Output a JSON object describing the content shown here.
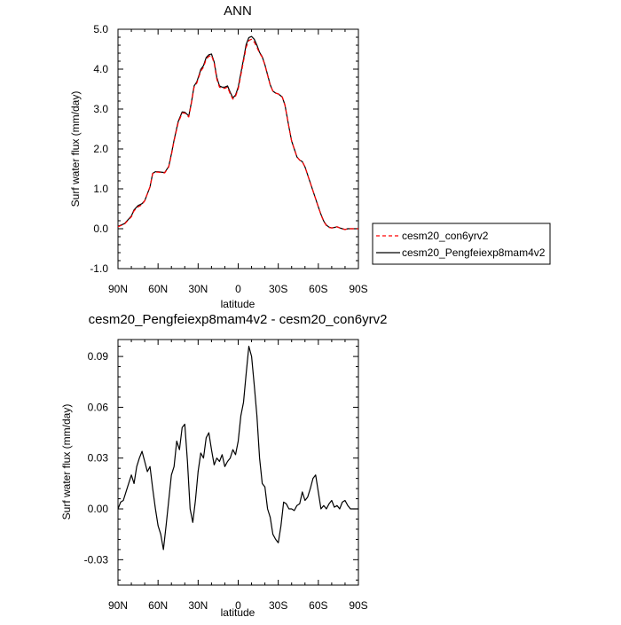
{
  "colors": {
    "axis": "#000000",
    "control_series": "#ff0000",
    "exp_series": "#000000",
    "background": "#ffffff"
  },
  "chart_data": [
    {
      "type": "line",
      "title": "ANN",
      "xlabel": "latitude",
      "ylabel": "Surf water flux (mm/day)",
      "x_direction": "north-to-south",
      "xlim": [
        90,
        -90
      ],
      "xticks": [
        90,
        60,
        30,
        0,
        -30,
        -60,
        -90
      ],
      "xtick_labels": [
        "90N",
        "60N",
        "30N",
        "0",
        "30S",
        "60S",
        "90S"
      ],
      "ylim": [
        -1.0,
        5.0
      ],
      "yticks": [
        -1.0,
        0.0,
        1.0,
        2.0,
        3.0,
        4.0,
        5.0
      ],
      "ytick_labels": [
        "-1.0",
        "0.0",
        "1.0",
        "2.0",
        "3.0",
        "4.0",
        "5.0"
      ],
      "legend_placement": "right",
      "grid": false,
      "series": [
        {
          "name": "cesm20_con6yrv2",
          "style": "dashed",
          "color": "#ff0000",
          "x": [
            90,
            85,
            80,
            78,
            75,
            72,
            70,
            66,
            64,
            62,
            60,
            58,
            55,
            52,
            50,
            48,
            45,
            42,
            40,
            37,
            35,
            33,
            31,
            29,
            28,
            26,
            24,
            22,
            20,
            18,
            16,
            14,
            12,
            10,
            8,
            6,
            4,
            2,
            0,
            -2,
            -4,
            -6,
            -8,
            -10,
            -12,
            -14,
            -16,
            -18,
            -20,
            -22,
            -24,
            -26,
            -28,
            -30,
            -33,
            -35,
            -38,
            -40,
            -42,
            -44,
            -46,
            -48,
            -50,
            -52,
            -54,
            -56,
            -58,
            -60,
            -62,
            -64,
            -66,
            -68,
            -70,
            -72,
            -74,
            -76,
            -78,
            -80,
            -82,
            -85,
            -88,
            -90
          ],
          "y": [
            0.05,
            0.12,
            0.3,
            0.45,
            0.55,
            0.6,
            0.7,
            1.05,
            1.38,
            1.42,
            1.42,
            1.41,
            1.4,
            1.55,
            1.85,
            2.2,
            2.65,
            2.9,
            2.9,
            2.8,
            3.15,
            3.55,
            3.65,
            3.85,
            3.95,
            4.05,
            4.25,
            4.32,
            4.35,
            4.15,
            3.75,
            3.55,
            3.52,
            3.52,
            3.55,
            3.38,
            3.25,
            3.32,
            3.5,
            3.85,
            4.2,
            4.55,
            4.72,
            4.75,
            4.68,
            4.55,
            4.4,
            4.3,
            4.1,
            3.85,
            3.6,
            3.45,
            3.4,
            3.38,
            3.3,
            3.1,
            2.55,
            2.2,
            2.0,
            1.8,
            1.72,
            1.68,
            1.55,
            1.35,
            1.15,
            0.95,
            0.75,
            0.55,
            0.35,
            0.18,
            0.08,
            0.03,
            0.02,
            0.03,
            0.05,
            0.02,
            0.0,
            -0.02,
            0.0,
            0.0,
            0.0,
            0.0
          ]
        },
        {
          "name": "cesm20_Pengfeiexp8mam4v2",
          "style": "solid",
          "color": "#000000",
          "x": [
            90,
            85,
            80,
            78,
            75,
            72,
            70,
            66,
            64,
            62,
            60,
            58,
            55,
            52,
            50,
            48,
            45,
            42,
            40,
            37,
            35,
            33,
            31,
            29,
            28,
            26,
            24,
            22,
            20,
            18,
            16,
            14,
            12,
            10,
            8,
            6,
            4,
            2,
            0,
            -2,
            -4,
            -6,
            -8,
            -10,
            -12,
            -14,
            -16,
            -18,
            -20,
            -22,
            -24,
            -26,
            -28,
            -30,
            -33,
            -35,
            -38,
            -40,
            -42,
            -44,
            -46,
            -48,
            -50,
            -52,
            -54,
            -56,
            -58,
            -60,
            -62,
            -64,
            -66,
            -68,
            -70,
            -72,
            -74,
            -76,
            -78,
            -80,
            -82,
            -85,
            -88,
            -90
          ],
          "y": [
            0.06,
            0.13,
            0.32,
            0.47,
            0.58,
            0.63,
            0.7,
            1.05,
            1.39,
            1.43,
            1.43,
            1.42,
            1.41,
            1.56,
            1.87,
            2.22,
            2.68,
            2.93,
            2.92,
            2.83,
            3.17,
            3.58,
            3.68,
            3.88,
            3.99,
            4.09,
            4.29,
            4.36,
            4.38,
            4.18,
            3.79,
            3.58,
            3.55,
            3.55,
            3.58,
            3.42,
            3.28,
            3.35,
            3.55,
            3.9,
            4.25,
            4.62,
            4.79,
            4.82,
            4.75,
            4.6,
            4.42,
            4.31,
            4.11,
            3.86,
            3.61,
            3.45,
            3.4,
            3.38,
            3.3,
            3.1,
            2.55,
            2.2,
            2.0,
            1.8,
            1.72,
            1.68,
            1.55,
            1.35,
            1.15,
            0.95,
            0.75,
            0.55,
            0.36,
            0.19,
            0.09,
            0.04,
            0.02,
            0.03,
            0.05,
            0.02,
            0.0,
            -0.02,
            0.0,
            0.0,
            0.0,
            0.0
          ]
        }
      ]
    },
    {
      "type": "line",
      "title": "cesm20_Pengfeiexp8mam4v2 - cesm20_con6yrv2",
      "xlabel": "latitude",
      "ylabel": "Surf water flux (mm/day)",
      "x_direction": "north-to-south",
      "xlim": [
        90,
        -90
      ],
      "xticks": [
        90,
        60,
        30,
        0,
        -30,
        -60,
        -90
      ],
      "xtick_labels": [
        "90N",
        "60N",
        "30N",
        "0",
        "30S",
        "60S",
        "90S"
      ],
      "ylim": [
        -0.045,
        0.1
      ],
      "yticks": [
        -0.03,
        0.0,
        0.03,
        0.06,
        0.09
      ],
      "ytick_labels": [
        "-0.03",
        "0.00",
        "0.03",
        "0.06",
        "0.09"
      ],
      "grid": false,
      "series": [
        {
          "style": "solid",
          "color": "#000000",
          "x": [
            90,
            88,
            86,
            84,
            82,
            80,
            78,
            76,
            74,
            72,
            70,
            68,
            66,
            64,
            62,
            60,
            58,
            56,
            54,
            52,
            50,
            48,
            46,
            44,
            42,
            40,
            38,
            36,
            34,
            32,
            30,
            28,
            26,
            24,
            22,
            20,
            18,
            16,
            14,
            12,
            10,
            8,
            6,
            4,
            2,
            0,
            -2,
            -4,
            -6,
            -8,
            -10,
            -12,
            -14,
            -16,
            -18,
            -20,
            -22,
            -24,
            -26,
            -28,
            -30,
            -32,
            -34,
            -36,
            -38,
            -40,
            -42,
            -44,
            -46,
            -48,
            -50,
            -52,
            -54,
            -56,
            -58,
            -60,
            -62,
            -64,
            -66,
            -68,
            -70,
            -72,
            -74,
            -76,
            -78,
            -80,
            -82,
            -84,
            -86,
            -88,
            -90
          ],
          "y": [
            0.0,
            0.004,
            0.005,
            0.01,
            0.015,
            0.02,
            0.015,
            0.025,
            0.03,
            0.034,
            0.028,
            0.022,
            0.025,
            0.012,
            0.0,
            -0.01,
            -0.015,
            -0.024,
            -0.01,
            0.005,
            0.02,
            0.025,
            0.04,
            0.035,
            0.048,
            0.05,
            0.028,
            0.0,
            -0.008,
            0.005,
            0.022,
            0.033,
            0.03,
            0.042,
            0.045,
            0.035,
            0.026,
            0.03,
            0.028,
            0.032,
            0.025,
            0.028,
            0.03,
            0.035,
            0.032,
            0.04,
            0.055,
            0.063,
            0.08,
            0.096,
            0.09,
            0.073,
            0.055,
            0.03,
            0.015,
            0.013,
            0.0,
            -0.005,
            -0.015,
            -0.018,
            -0.02,
            -0.01,
            0.004,
            0.003,
            0.0,
            0.0,
            -0.001,
            0.002,
            0.003,
            0.01,
            0.005,
            0.007,
            0.012,
            0.018,
            0.02,
            0.01,
            0.0,
            0.002,
            0.0,
            0.003,
            0.005,
            0.001,
            0.002,
            0.0,
            0.004,
            0.005,
            0.002,
            0.0,
            0.0,
            0.0,
            0.0
          ]
        }
      ]
    }
  ]
}
